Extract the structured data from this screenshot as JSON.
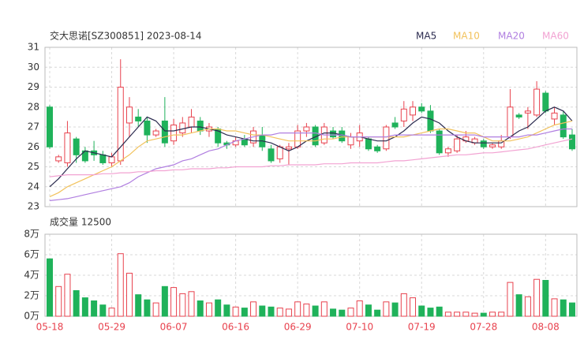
{
  "chart_data": {
    "type": "candlestick",
    "title": "交大思诺[SZ300851] 2023-08-14",
    "categories": [
      "05-18",
      null,
      null,
      null,
      null,
      null,
      null,
      "05-29",
      null,
      null,
      null,
      null,
      null,
      null,
      "06-07",
      null,
      null,
      null,
      null,
      null,
      null,
      "06-16",
      null,
      null,
      null,
      null,
      null,
      null,
      "06-29",
      null,
      null,
      null,
      null,
      null,
      null,
      "07-10",
      null,
      null,
      null,
      null,
      null,
      null,
      "07-19",
      null,
      null,
      null,
      null,
      null,
      null,
      "07-28",
      null,
      null,
      null,
      null,
      null,
      null,
      "08-08",
      null,
      null,
      null
    ],
    "open": [
      28.0,
      25.3,
      25.2,
      26.4,
      25.8,
      25.8,
      25.6,
      25.2,
      25.3,
      27.2,
      27.5,
      27.3,
      26.6,
      27.3,
      26.3,
      26.7,
      27.0,
      27.3,
      26.8,
      26.9,
      26.2,
      26.1,
      26.4,
      26.2,
      26.6,
      25.9,
      25.4,
      25.9,
      26.0,
      26.8,
      27.0,
      26.2,
      26.8,
      26.8,
      26.1,
      26.3,
      26.4,
      26.0,
      25.9,
      27.2,
      27.3,
      27.6,
      28.0,
      27.8,
      26.8,
      25.7,
      25.8,
      26.3,
      26.2,
      26.3,
      26.0,
      26.0,
      26.5,
      27.6,
      27.7,
      27.6,
      28.7,
      27.4,
      27.6,
      26.6
    ],
    "high": [
      28.1,
      25.6,
      27.3,
      26.5,
      26.0,
      26.3,
      25.8,
      25.7,
      30.4,
      28.5,
      27.9,
      27.5,
      26.9,
      28.5,
      27.4,
      27.5,
      27.9,
      27.5,
      27.2,
      27.0,
      26.3,
      26.5,
      26.6,
      27.0,
      27.0,
      26.1,
      26.1,
      26.2,
      27.1,
      27.2,
      27.1,
      27.2,
      27.0,
      27.0,
      26.7,
      27.1,
      26.5,
      26.1,
      27.1,
      27.5,
      28.3,
      28.3,
      28.2,
      28.1,
      26.9,
      26.0,
      26.6,
      26.8,
      26.5,
      26.4,
      26.2,
      26.6,
      28.9,
      27.7,
      28.0,
      29.3,
      28.8,
      28.0,
      27.8,
      26.9
    ],
    "low": [
      25.9,
      25.2,
      25.0,
      25.2,
      25.2,
      25.3,
      25.1,
      25.0,
      25.1,
      26.5,
      27.0,
      26.2,
      26.5,
      26.0,
      26.1,
      26.5,
      26.7,
      26.6,
      26.5,
      26.0,
      25.9,
      26.0,
      26.0,
      26.0,
      25.8,
      25.2,
      25.2,
      25.1,
      25.9,
      26.5,
      26.0,
      26.1,
      26.4,
      26.2,
      25.9,
      26.0,
      25.8,
      25.7,
      25.8,
      26.9,
      27.0,
      27.3,
      27.7,
      26.7,
      25.6,
      25.5,
      25.7,
      26.2,
      26.1,
      25.9,
      25.9,
      25.9,
      26.4,
      27.4,
      26.9,
      27.5,
      27.7,
      27.1,
      26.4,
      25.8
    ],
    "close": [
      26.0,
      25.5,
      26.7,
      25.6,
      25.3,
      25.6,
      25.2,
      25.5,
      29.0,
      28.0,
      27.3,
      26.6,
      26.8,
      26.2,
      27.1,
      27.2,
      27.5,
      26.8,
      27.0,
      26.2,
      26.1,
      26.3,
      26.1,
      26.8,
      26.0,
      25.3,
      26.0,
      26.0,
      26.8,
      27.0,
      26.1,
      27.0,
      26.5,
      26.3,
      26.5,
      26.7,
      25.9,
      25.8,
      27.0,
      27.0,
      27.9,
      28.0,
      27.8,
      26.8,
      25.7,
      25.9,
      26.4,
      26.5,
      26.4,
      26.0,
      26.1,
      26.3,
      28.0,
      27.5,
      27.8,
      28.9,
      27.8,
      27.7,
      26.5,
      25.9
    ],
    "ylim": [
      23,
      31
    ],
    "yticks": [
      23,
      24,
      25,
      26,
      27,
      28,
      29,
      30,
      31
    ],
    "grid": true,
    "up_color": "#e8424e",
    "down_color": "#1fb25a",
    "series": [
      {
        "name": "MA5",
        "color": "#2b2b4f",
        "values": [
          24.0,
          24.4,
          24.9,
          25.4,
          25.8,
          25.7,
          25.6,
          25.5,
          26.0,
          26.5,
          27.0,
          27.5,
          27.3,
          26.8,
          26.8,
          26.9,
          27.0,
          27.0,
          26.9,
          26.8,
          26.6,
          26.5,
          26.4,
          26.3,
          26.3,
          26.2,
          26.0,
          25.8,
          26.0,
          26.3,
          26.5,
          26.7,
          26.7,
          26.6,
          26.5,
          26.5,
          26.4,
          26.3,
          26.3,
          26.5,
          26.8,
          27.2,
          27.5,
          27.4,
          27.2,
          26.8,
          26.5,
          26.3,
          26.2,
          26.2,
          26.2,
          26.2,
          26.5,
          26.8,
          27.0,
          27.4,
          27.8,
          28.0,
          27.8,
          27.3
        ]
      },
      {
        "name": "MA10",
        "color": "#f2c25c",
        "values": [
          23.5,
          23.7,
          24.0,
          24.2,
          24.4,
          24.6,
          24.8,
          25.0,
          25.3,
          25.6,
          26.0,
          26.3,
          26.4,
          26.5,
          26.6,
          26.6,
          26.7,
          26.8,
          26.9,
          26.9,
          26.8,
          26.8,
          26.7,
          26.6,
          26.6,
          26.5,
          26.4,
          26.3,
          26.3,
          26.3,
          26.3,
          26.4,
          26.4,
          26.5,
          26.5,
          26.5,
          26.5,
          26.5,
          26.5,
          26.5,
          26.5,
          26.6,
          26.7,
          26.8,
          26.9,
          26.9,
          26.8,
          26.7,
          26.7,
          26.5,
          26.3,
          26.3,
          26.3,
          26.4,
          26.5,
          26.7,
          26.9,
          27.1,
          27.2,
          27.3
        ]
      },
      {
        "name": "MA20",
        "color": "#b07ee0",
        "values": [
          23.3,
          23.35,
          23.4,
          23.5,
          23.6,
          23.7,
          23.8,
          23.9,
          24.0,
          24.2,
          24.5,
          24.7,
          24.9,
          25.0,
          25.1,
          25.3,
          25.4,
          25.6,
          25.8,
          25.9,
          26.1,
          26.3,
          26.4,
          26.5,
          26.6,
          26.6,
          26.7,
          26.7,
          26.7,
          26.7,
          26.7,
          26.6,
          26.6,
          26.6,
          26.5,
          26.5,
          26.5,
          26.5,
          26.5,
          26.6,
          26.6,
          26.6,
          26.6,
          26.6,
          26.6,
          26.6,
          26.6,
          26.6,
          26.6,
          26.5,
          26.5,
          26.5,
          26.5,
          26.5,
          26.6,
          26.6,
          26.7,
          26.8,
          26.9,
          26.9
        ]
      },
      {
        "name": "MA60",
        "color": "#f2a2d2",
        "values": [
          24.5,
          24.55,
          24.6,
          24.6,
          24.6,
          24.6,
          24.65,
          24.65,
          24.7,
          24.7,
          24.75,
          24.75,
          24.8,
          24.8,
          24.85,
          24.85,
          24.9,
          24.9,
          24.9,
          24.95,
          24.95,
          25.0,
          25.0,
          25.0,
          25.0,
          25.05,
          25.05,
          25.1,
          25.1,
          25.1,
          25.1,
          25.15,
          25.15,
          25.15,
          25.2,
          25.2,
          25.2,
          25.2,
          25.25,
          25.3,
          25.3,
          25.35,
          25.4,
          25.45,
          25.5,
          25.55,
          25.6,
          25.6,
          25.65,
          25.7,
          25.7,
          25.75,
          25.8,
          25.85,
          25.9,
          26.0,
          26.1,
          26.2,
          26.3,
          26.4
        ]
      }
    ],
    "volume": {
      "title": "成交量 12500",
      "values": [
        5.6,
        2.9,
        4.1,
        2.5,
        1.8,
        1.5,
        1.1,
        0.8,
        6.1,
        4.2,
        2.1,
        1.6,
        1.3,
        2.9,
        2.8,
        2.2,
        2.4,
        1.5,
        1.3,
        1.6,
        1.1,
        0.9,
        0.8,
        1.4,
        1.0,
        0.9,
        0.8,
        0.7,
        1.4,
        1.2,
        1.0,
        1.4,
        0.7,
        0.6,
        0.8,
        1.5,
        1.1,
        0.6,
        1.4,
        1.3,
        2.2,
        1.8,
        1.0,
        0.8,
        0.9,
        0.4,
        0.4,
        0.4,
        0.3,
        0.3,
        0.4,
        0.4,
        3.3,
        2.1,
        1.9,
        3.6,
        3.5,
        1.7,
        1.6,
        1.3
      ],
      "ylim": [
        0,
        8
      ],
      "yticks": [
        {
          "value": 0,
          "label": "0万"
        },
        {
          "value": 2,
          "label": "2万"
        },
        {
          "value": 4,
          "label": "4万"
        },
        {
          "value": 6,
          "label": "6万"
        },
        {
          "value": 8,
          "label": "8万"
        }
      ]
    }
  }
}
